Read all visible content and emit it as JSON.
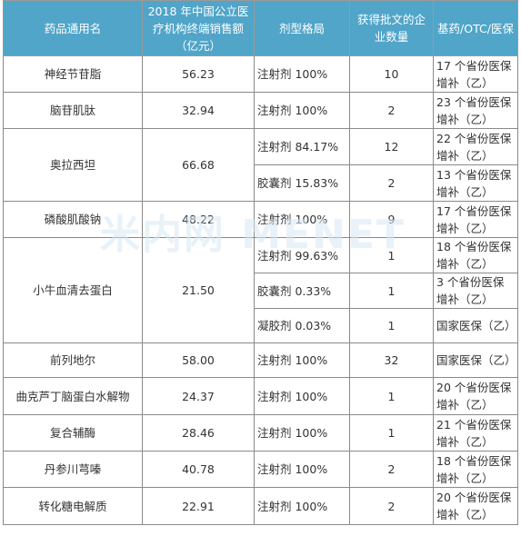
{
  "table": {
    "headers": {
      "name": "药品通用名",
      "sales": "2018 年中国公立医疗机构终端销售额（亿元）",
      "form": "剂型格局",
      "companies": "获得批文的企业数量",
      "insurance": "基药/OTC/医保"
    },
    "rows": [
      {
        "name": "神经节苷脂",
        "sales": "56.23",
        "forms": [
          {
            "form": "注射剂 100%",
            "companies": "10",
            "insurance": "17 个省份医保增补（乙）"
          }
        ]
      },
      {
        "name": "脑苷肌肽",
        "sales": "32.94",
        "forms": [
          {
            "form": "注射剂 100%",
            "companies": "2",
            "insurance": "23 个省份医保增补（乙）"
          }
        ]
      },
      {
        "name": "奥拉西坦",
        "sales": "66.68",
        "forms": [
          {
            "form": "注射剂 84.17%",
            "companies": "12",
            "insurance": "22 个省份医保增补（乙）"
          },
          {
            "form": "胶囊剂 15.83%",
            "companies": "2",
            "insurance": "13 个省份医保增补（乙）"
          }
        ]
      },
      {
        "name": "磷酸肌酸钠",
        "sales": "48.22",
        "forms": [
          {
            "form": "注射剂 100%",
            "companies": "9",
            "insurance": "17 个省份医保增补（乙）"
          }
        ]
      },
      {
        "name": "小牛血清去蛋白",
        "sales": "21.50",
        "forms": [
          {
            "form": "注射剂 99.63%",
            "companies": "1",
            "insurance": "18 个省份医保增补（乙）"
          },
          {
            "form": "胶囊剂 0.33%",
            "companies": "1",
            "insurance": "3 个省份医保增补（乙）"
          },
          {
            "form": "凝胶剂 0.03%",
            "companies": "1",
            "insurance": "国家医保（乙）"
          }
        ]
      },
      {
        "name": "前列地尔",
        "sales": "58.00",
        "forms": [
          {
            "form": "注射剂 100%",
            "companies": "32",
            "insurance": "国家医保（乙）"
          }
        ]
      },
      {
        "name": "曲克芦丁脑蛋白水解物",
        "sales": "24.37",
        "forms": [
          {
            "form": "注射剂 100%",
            "companies": "1",
            "insurance": "20 个省份医保增补（乙）"
          }
        ]
      },
      {
        "name": "复合辅酶",
        "sales": "28.46",
        "forms": [
          {
            "form": "注射剂 100%",
            "companies": "1",
            "insurance": "21 个省份医保增补（乙）"
          }
        ]
      },
      {
        "name": "丹参川芎嗪",
        "sales": "40.78",
        "forms": [
          {
            "form": "注射剂 100%",
            "companies": "2",
            "insurance": "18 个省份医保增补（乙）"
          }
        ]
      },
      {
        "name": "转化糖电解质",
        "sales": "22.91",
        "forms": [
          {
            "form": "注射剂 100%",
            "companies": "2",
            "insurance": "20 个省份医保增补（乙）"
          }
        ]
      }
    ]
  },
  "watermark": "米内网 MENET",
  "colors": {
    "header_bg": "#50a5c9",
    "header_text": "#ffffff",
    "border": "#8a8a8a"
  }
}
